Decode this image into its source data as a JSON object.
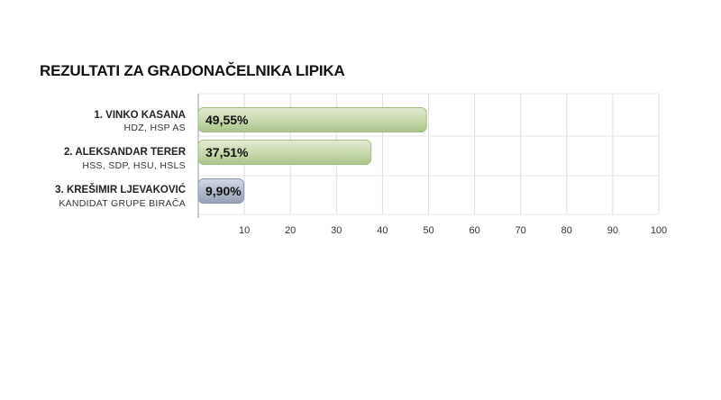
{
  "chart_data": {
    "type": "bar",
    "orientation": "horizontal",
    "title": "REZULTATI ZA GRADONAČELNIKA LIPIKA",
    "categories": [
      {
        "name": "1. VINKO KASANA",
        "sub": "HDZ, HSP AS",
        "color": "#cbdcb0"
      },
      {
        "name": "2. ALEKSANDAR TERER",
        "sub": "HSS, SDP, HSU, HSLS",
        "color": "#cbdcb0"
      },
      {
        "name": "3. KREŠIMIR LJEVAKOVIĆ",
        "sub": "KANDIDAT GRUPE BIRAČA",
        "color": "#b3bbcf"
      }
    ],
    "values": [
      49.55,
      37.51,
      9.9
    ],
    "value_labels": [
      "49,55%",
      "37,51%",
      "9,90%"
    ],
    "xlim": [
      0,
      100
    ],
    "xticks": [
      10,
      20,
      30,
      40,
      50,
      60,
      70,
      80,
      90,
      100
    ],
    "grid": true
  }
}
